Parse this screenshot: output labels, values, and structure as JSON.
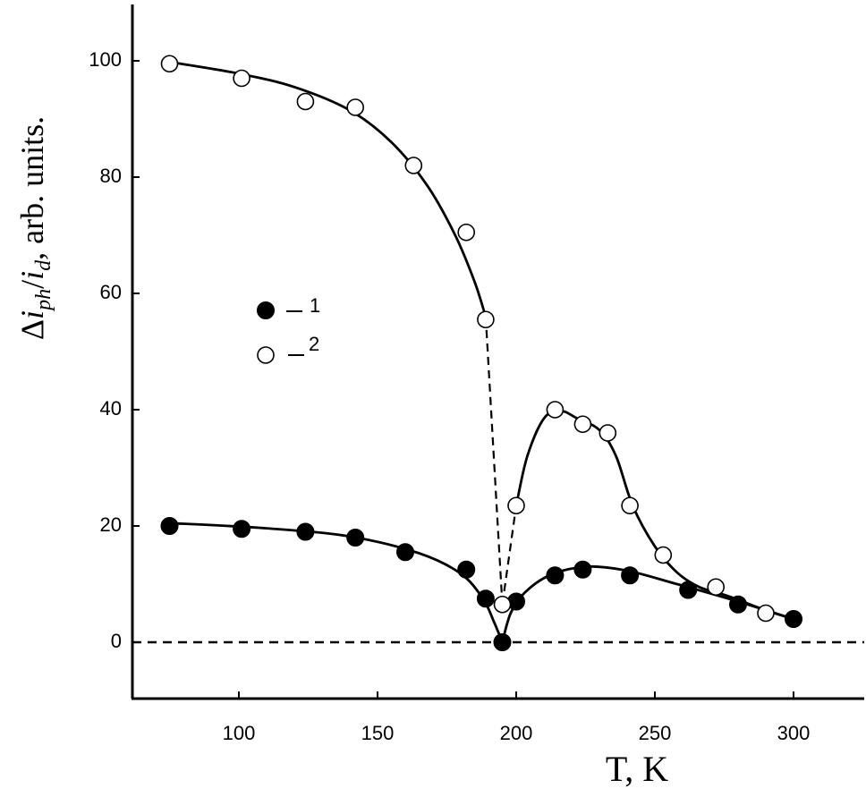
{
  "chart_data": {
    "type": "scatter",
    "title": "",
    "xlabel": "T, K",
    "ylabel": "Δi_ph/i_d, arb. units.",
    "ylabel_parts": {
      "delta": "Δ",
      "i1": "i",
      "sub1": "ph",
      "slash": "/",
      "i2": "i",
      "sub2": "d",
      "rest": ", arb. units."
    },
    "xlim": [
      60,
      335
    ],
    "ylim": [
      -10,
      110
    ],
    "xticks": [
      "100",
      "150",
      "200",
      "250",
      "300"
    ],
    "yticks": [
      "0",
      "20",
      "40",
      "60",
      "80",
      "100"
    ],
    "grid": false,
    "legend_position": "center-left",
    "zero_line": {
      "y": 0,
      "style": "dashed"
    },
    "series": [
      {
        "name": "1",
        "marker": "filled-circle",
        "color": "#000000",
        "x": [
          75,
          101,
          124,
          142,
          160,
          182,
          189,
          195,
          200,
          214,
          224,
          241,
          262,
          280,
          300
        ],
        "y": [
          20,
          19.5,
          19,
          18,
          15.5,
          12.5,
          7.5,
          0,
          7,
          11.5,
          12.5,
          11.5,
          9,
          6.5,
          4
        ],
        "curve_left": {
          "x": [
            75,
            110,
            140,
            165,
            180,
            188,
            192,
            195
          ],
          "y": [
            20.5,
            19.6,
            18.2,
            15.3,
            11.8,
            7.5,
            3.5,
            0
          ]
        },
        "curve_right": {
          "x": [
            195,
            198,
            203,
            212,
            225,
            240,
            258,
            280,
            300
          ],
          "y": [
            0,
            5,
            8.5,
            11.5,
            13,
            12.3,
            10,
            7,
            4
          ]
        }
      },
      {
        "name": "2",
        "marker": "open-circle",
        "color": "#000000",
        "x": [
          75,
          101,
          124,
          142,
          163,
          182,
          189,
          195,
          200,
          214,
          224,
          233,
          241,
          253,
          272,
          290
        ],
        "y": [
          99.5,
          97,
          93,
          92,
          82,
          70.5,
          55.5,
          6.5,
          23.5,
          40,
          37.5,
          36,
          23.5,
          15,
          9.5,
          5
        ],
        "curve_left": {
          "x": [
            75,
            100,
            120,
            140,
            155,
            168,
            178,
            185,
            189
          ],
          "y": [
            99.8,
            97.8,
            95.5,
            91.5,
            86,
            78.5,
            70,
            62,
            56
          ]
        },
        "dashed": [
          [
            189,
            56,
            195,
            6.5
          ],
          [
            195,
            6.5,
            200,
            23.5
          ]
        ],
        "curve_right": {
          "x": [
            200,
            204,
            210,
            216,
            222,
            230,
            236,
            242,
            250,
            258,
            266,
            276,
            290,
            300
          ],
          "y": [
            23.5,
            32,
            38.5,
            39.8,
            38.5,
            36.5,
            32,
            23.5,
            16.5,
            12,
            9.5,
            8,
            5.5,
            4
          ]
        }
      }
    ]
  }
}
